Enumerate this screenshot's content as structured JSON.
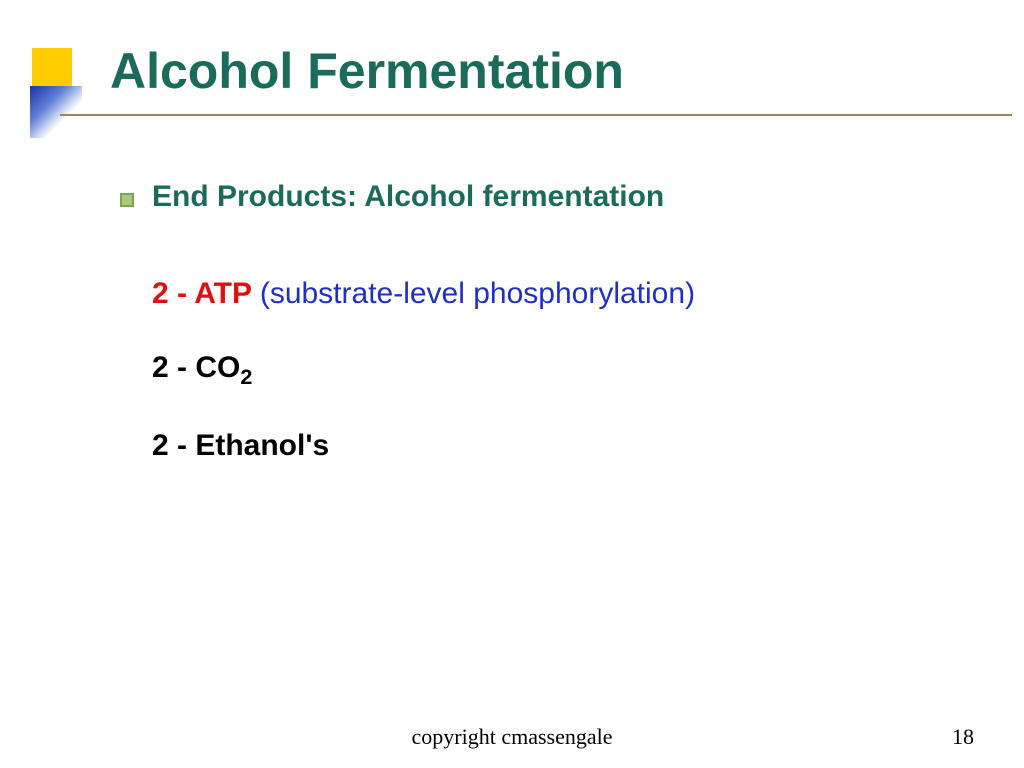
{
  "title": "Alcohol Fermentation",
  "bullet": "End Products: Alcohol fermentation",
  "items": {
    "atp_prefix": "2 - ATP ",
    "atp_paren_open": "(",
    "atp_detail": "substrate-level phosphorylation",
    "atp_paren_close": ")",
    "co2_prefix": "2 - CO",
    "co2_sub": "2",
    "ethanol": "2 - Ethanol's"
  },
  "footer": "copyright cmassengale",
  "page_number": "18",
  "colors": {
    "title": "#1b6b5b",
    "bullet_text": "#1b6b5b",
    "atp_red": "#e01010",
    "atp_blue": "#2030c0",
    "black": "#000000",
    "deco_yellow": "#ffcc00",
    "underline": "#9a865a",
    "bullet_fill": "#a8c97f",
    "bullet_border": "#7aa84a"
  },
  "fonts": {
    "title_size": 50,
    "body_size": 30,
    "footer_size": 22
  }
}
